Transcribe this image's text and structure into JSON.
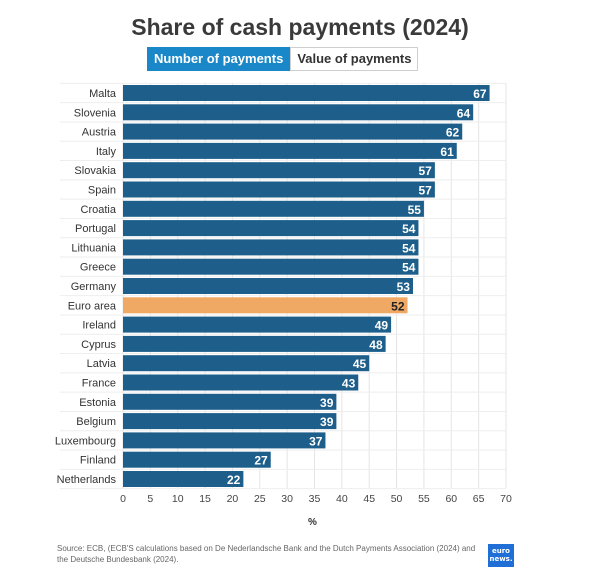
{
  "header": {
    "title": "Share of cash payments (2024)",
    "tabs": [
      {
        "label": "Number of payments",
        "active": true
      },
      {
        "label": "Value of payments",
        "active": false
      }
    ]
  },
  "colors": {
    "bar": "#1d5f8a",
    "highlight": "#f0a865",
    "tab_active": "#1a87c8"
  },
  "chart_data": {
    "type": "bar",
    "orientation": "horizontal",
    "categories": [
      "Malta",
      "Slovenia",
      "Austria",
      "Italy",
      "Slovakia",
      "Spain",
      "Croatia",
      "Portugal",
      "Lithuania",
      "Greece",
      "Germany",
      "Euro area",
      "Ireland",
      "Cyprus",
      "Latvia",
      "France",
      "Estonia",
      "Belgium",
      "Luxembourg",
      "Finland",
      "Netherlands"
    ],
    "values": [
      67,
      64,
      62,
      61,
      57,
      57,
      55,
      54,
      54,
      54,
      53,
      52,
      49,
      48,
      45,
      43,
      39,
      39,
      37,
      27,
      22
    ],
    "highlight": "Euro area",
    "xlabel": "%",
    "xlim": [
      0,
      70
    ],
    "xticks": [
      0,
      5,
      10,
      15,
      20,
      25,
      30,
      35,
      40,
      45,
      50,
      55,
      60,
      65,
      70
    ],
    "grid": true
  },
  "footer": {
    "source": "Source: ECB, (ECB'S calculations based on De Nederlandsche Bank and the Dutch Payments Association (2024) and the Deutsche Bundesbank (2024).",
    "logo_text": "euro news."
  }
}
